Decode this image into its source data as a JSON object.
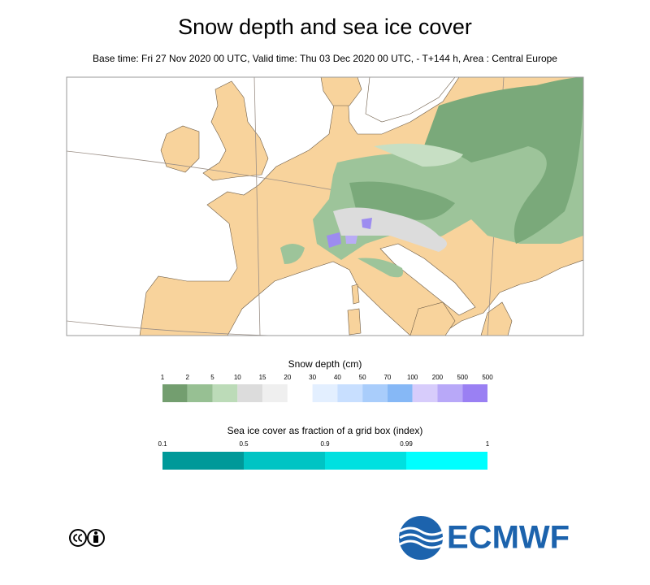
{
  "header": {
    "title": "Snow depth and sea ice cover",
    "subtitle": "Base time: Fri 27 Nov 2020 00 UTC, Valid time: Thu 03 Dec 2020 00 UTC, - T+144 h, Area : Central Europe"
  },
  "snow_legend": {
    "title": "Snow depth (cm)",
    "labels": [
      1,
      2,
      5,
      10,
      15,
      20,
      30,
      40,
      50,
      70,
      100,
      200,
      500,
      500
    ],
    "colors": [
      "#739e6f",
      "#97c093",
      "#bcdbb8",
      "#dcdcdc",
      "#efefef",
      "#ffffff",
      "#e3efff",
      "#c8dfff",
      "#a9cdfb",
      "#86b8f6",
      "#d7ccfb",
      "#b8a8f8",
      "#9a80f3"
    ]
  },
  "ice_legend": {
    "title": "Sea ice cover as fraction of a grid box (index)",
    "labels": [
      0.1,
      0.5,
      0.9,
      0.99,
      1
    ],
    "colors": [
      "#009999",
      "#00c4c4",
      "#00e0e0",
      "#00ffff"
    ]
  },
  "logo": {
    "text": "ECMWF"
  }
}
